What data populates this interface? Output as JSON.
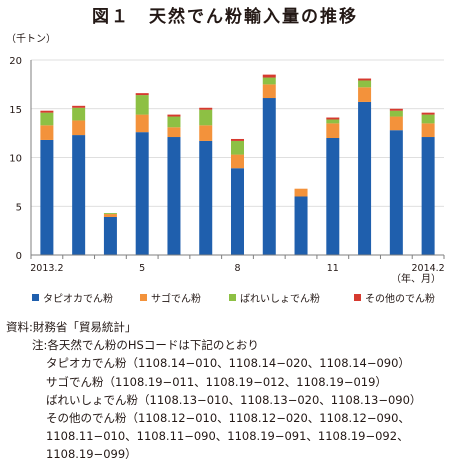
{
  "title": "図１　天然でん粉輸入量の推移",
  "unit_label": "（千トン）",
  "period_label": "（年、月）",
  "chart_data": {
    "type": "bar",
    "stacked": true,
    "categories": [
      "2013.2",
      "",
      "",
      "5",
      "",
      "",
      "8",
      "",
      "",
      "11",
      "",
      "",
      "2014.2"
    ],
    "category_labels": [
      "2013.2",
      "5",
      "8",
      "11",
      "2014.2"
    ],
    "series": [
      {
        "name": "タピオカでん粉",
        "color": "#1f5fad",
        "values": [
          11.8,
          12.3,
          3.9,
          12.6,
          12.1,
          11.7,
          8.9,
          16.1,
          6.0,
          12.0,
          15.7,
          12.8,
          12.1
        ]
      },
      {
        "name": "サゴでん粉",
        "color": "#f3923b",
        "values": [
          1.5,
          1.5,
          0.3,
          1.8,
          1.0,
          1.6,
          1.4,
          1.4,
          0.8,
          1.5,
          1.5,
          1.4,
          1.4
        ]
      },
      {
        "name": "ばれいしょでん粉",
        "color": "#8dc044",
        "values": [
          1.3,
          1.3,
          0.1,
          2.0,
          1.1,
          1.6,
          1.4,
          0.7,
          0.0,
          0.4,
          0.7,
          0.6,
          0.9
        ]
      },
      {
        "name": "その他のでん粉",
        "color": "#d63a2f",
        "values": [
          0.2,
          0.2,
          0.0,
          0.2,
          0.2,
          0.2,
          0.2,
          0.3,
          0.0,
          0.2,
          0.2,
          0.2,
          0.2
        ]
      }
    ],
    "ylim": [
      0,
      20
    ],
    "yticks": [
      0,
      5,
      10,
      15,
      20
    ],
    "grid": true,
    "legend_position": "bottom"
  },
  "notes": {
    "source": "資料:財務省「貿易統計」",
    "note_heading": "注:各天然でん粉のHSコードは下記のとおり",
    "lines": [
      "タピオカでん粉（1108.14−010、1108.14−020、1108.14−090）",
      "サゴでん粉（1108.19−011、1108.19−012、1108.19−019）",
      "ばれいしょでん粉（1108.13−010、1108.13−020、1108.13−090）",
      "その他のでん粉（1108.12−010、1108.12−020、1108.12−090、",
      "1108.11−010、1108.11−090、1108.19−091、1108.19−092、",
      "1108.19−099）"
    ]
  }
}
